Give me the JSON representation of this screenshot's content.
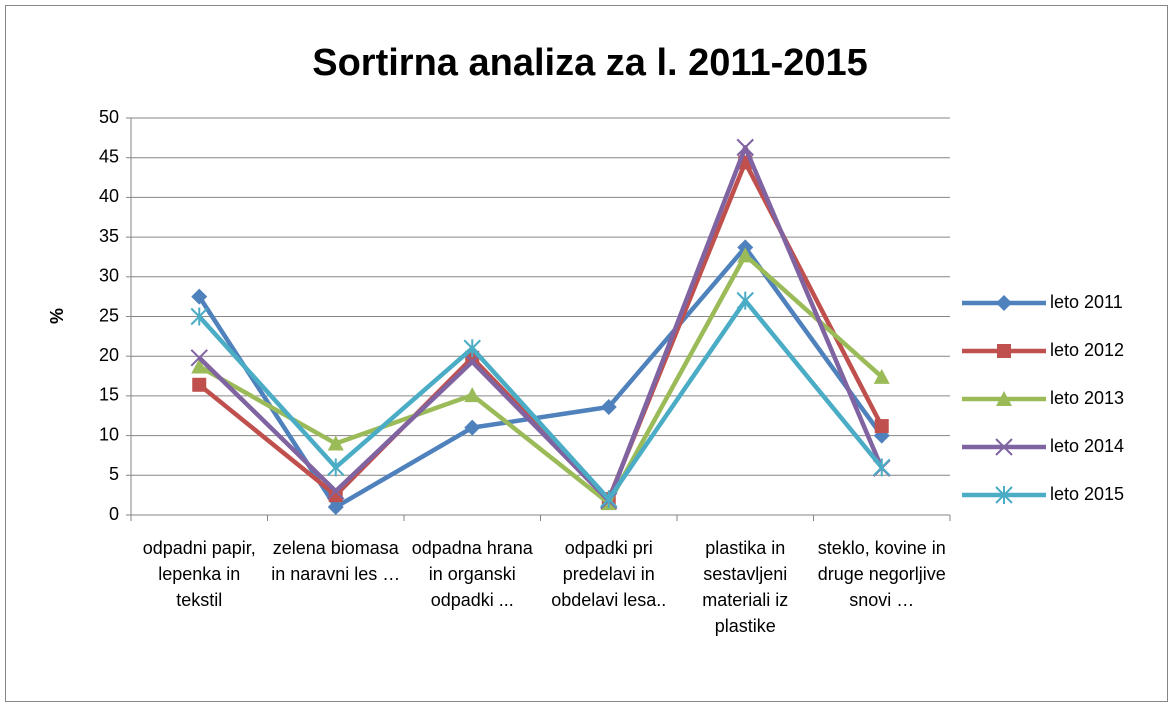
{
  "chart_data": {
    "type": "line",
    "title": "Sortirna analiza za l. 2011-2015",
    "y_label": "%",
    "categories": [
      "odpadni papir, lepenka in tekstil",
      "zelena biomasa in naravni les …",
      "odpadna hrana in organski odpadki ...",
      "odpadki pri predelavi in obdelavi lesa..",
      "plastika in sestavljeni materiali iz plastike",
      "steklo, kovine in druge negorljive snovi …"
    ],
    "series": [
      {
        "name": "leto 2011",
        "color": "#4F81BD",
        "marker": "diamond",
        "values": [
          27.5,
          1,
          11,
          13.6,
          33.7,
          10
        ]
      },
      {
        "name": "leto 2012",
        "color": "#C0504D",
        "marker": "square",
        "values": [
          16.4,
          2.5,
          19.8,
          2,
          44.4,
          11.2
        ]
      },
      {
        "name": "leto 2013",
        "color": "#9BBB59",
        "marker": "triangle",
        "values": [
          18.7,
          9,
          15.1,
          1.5,
          32.7,
          17.4
        ]
      },
      {
        "name": "leto 2014",
        "color": "#8064A2",
        "marker": "x",
        "values": [
          19.8,
          3,
          19.3,
          1.8,
          46.3,
          5.9
        ]
      },
      {
        "name": "leto 2015",
        "color": "#4BACC6",
        "marker": "star",
        "values": [
          25,
          6,
          21,
          2,
          27,
          6
        ]
      }
    ],
    "ylim": [
      0,
      50
    ],
    "yticks": [
      0,
      5,
      10,
      15,
      20,
      25,
      30,
      35,
      40,
      45,
      50
    ],
    "grid": true,
    "legend": "right"
  }
}
